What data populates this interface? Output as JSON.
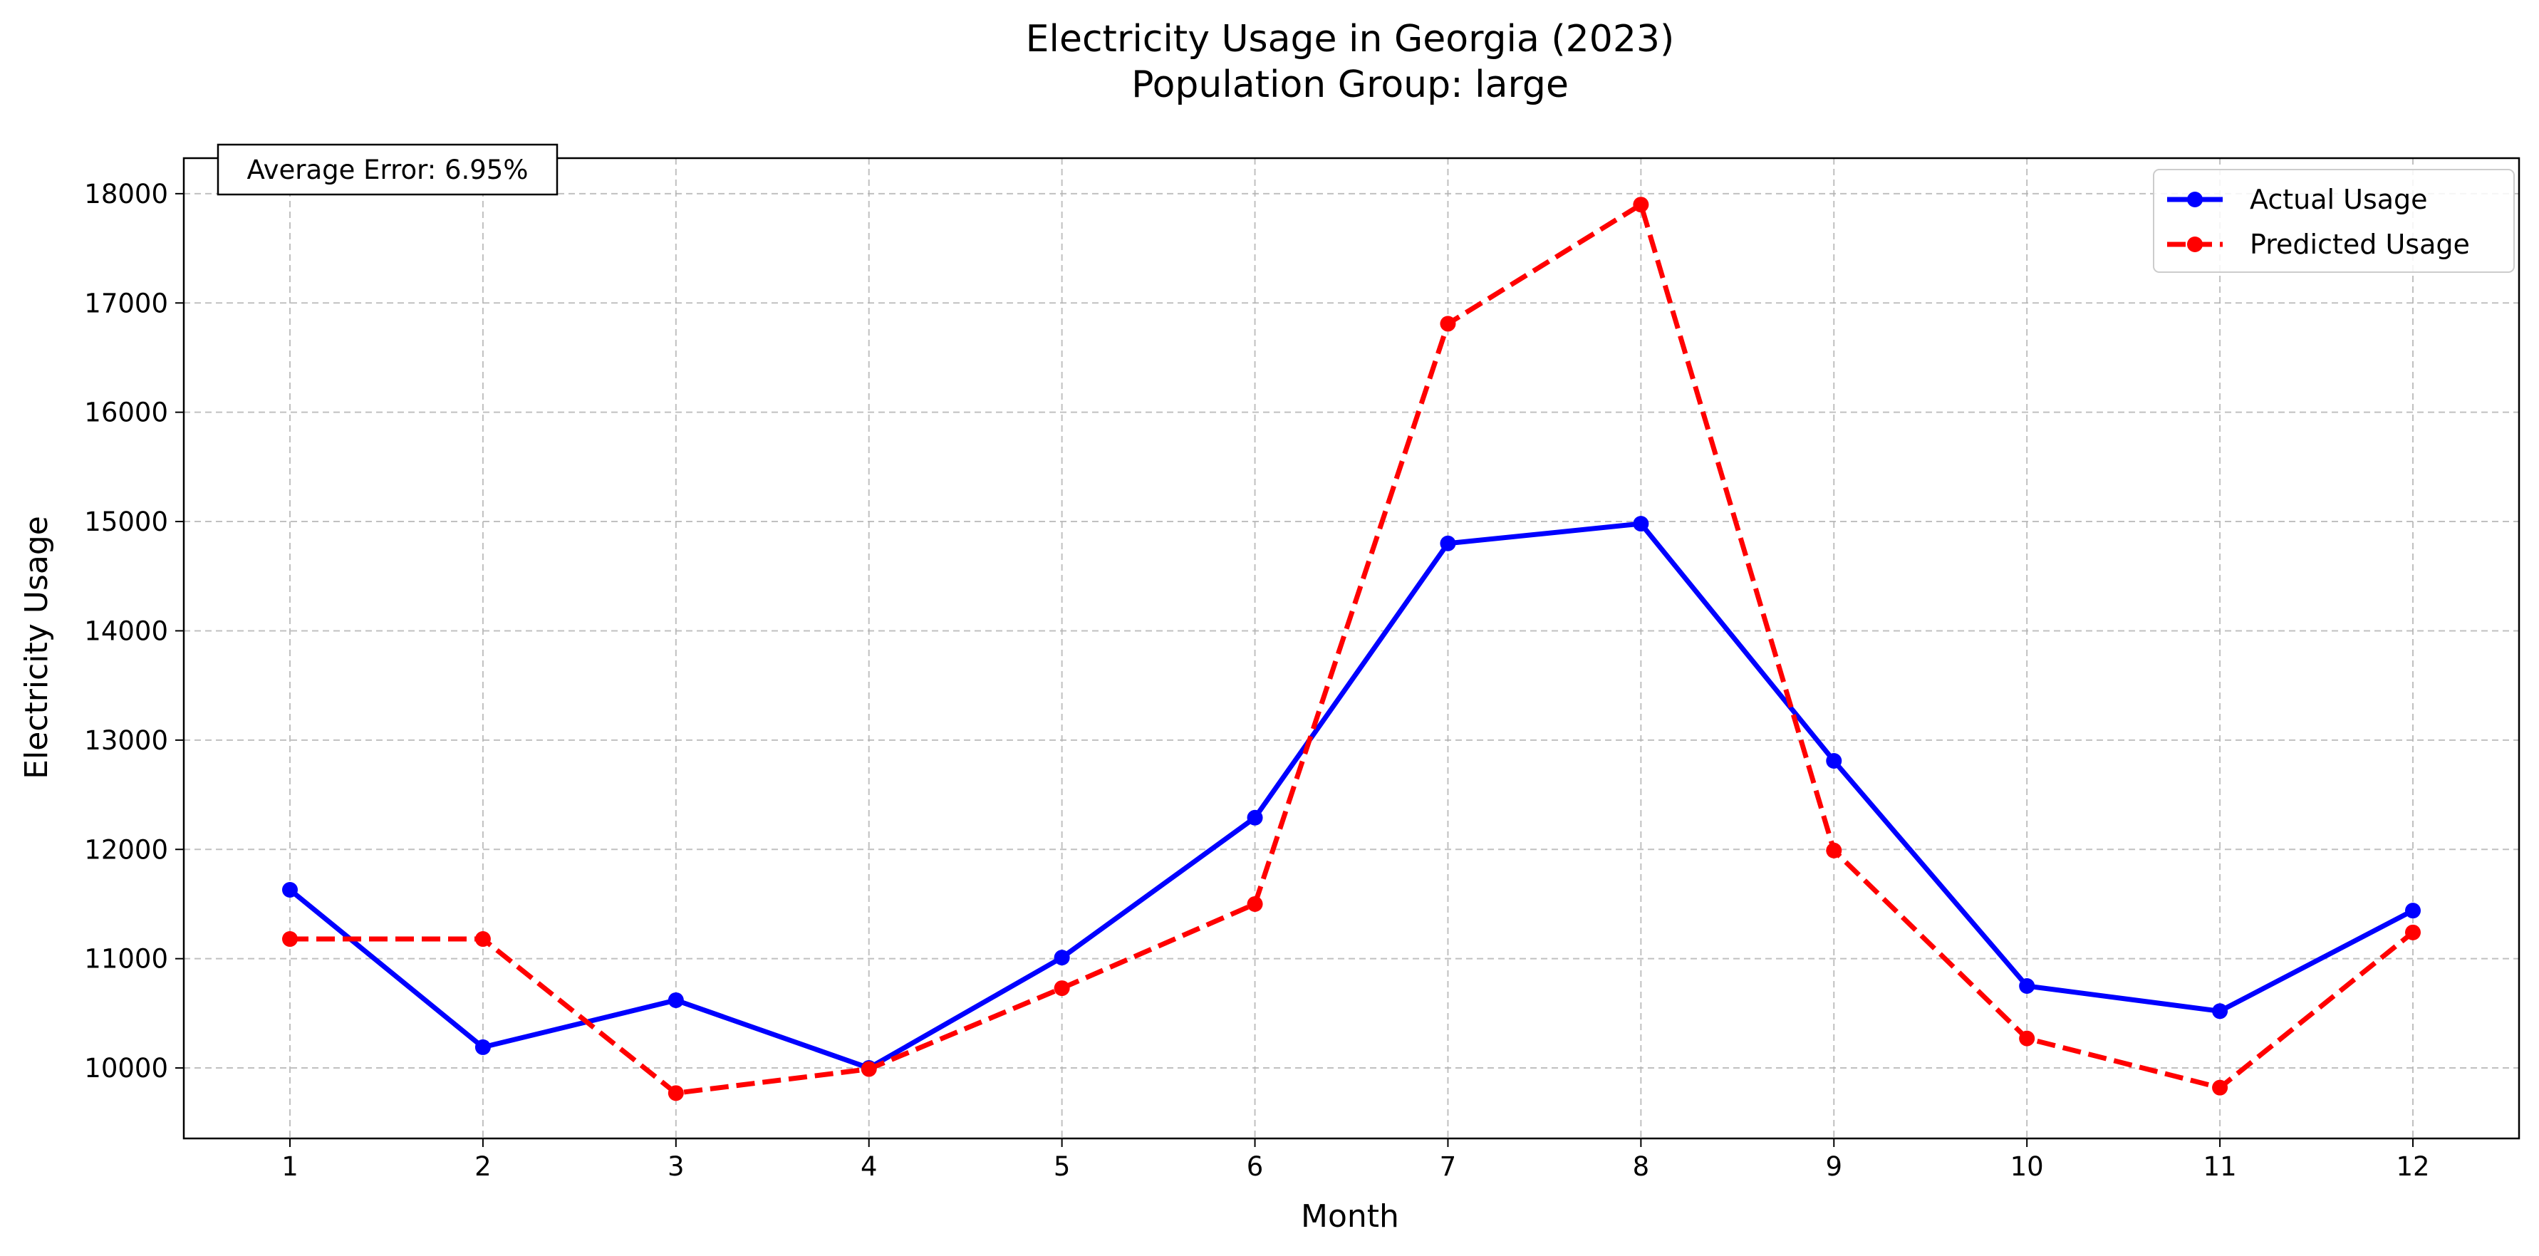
{
  "chart_data": {
    "type": "line",
    "title": "Electricity Usage in Georgia (2023)",
    "subtitle": "Population Group: large",
    "xlabel": "Month",
    "ylabel": "Electricity Usage",
    "x": [
      1,
      2,
      3,
      4,
      5,
      6,
      7,
      8,
      9,
      10,
      11,
      12
    ],
    "x_tick_labels": [
      "1",
      "2",
      "3",
      "4",
      "5",
      "6",
      "7",
      "8",
      "9",
      "10",
      "11",
      "12"
    ],
    "xlim": [
      0.45,
      12.55
    ],
    "ylim": [
      9355,
      18325
    ],
    "y_ticks": [
      10000,
      11000,
      12000,
      13000,
      14000,
      15000,
      16000,
      17000,
      18000
    ],
    "y_tick_labels": [
      "10000",
      "11000",
      "12000",
      "13000",
      "14000",
      "15000",
      "16000",
      "17000",
      "18000"
    ],
    "grid": true,
    "legend_position": "top-right",
    "series": [
      {
        "name": "Actual Usage",
        "color": "#0000ff",
        "line_style": "solid",
        "marker": "circle",
        "values": [
          11630,
          10190,
          10620,
          10000,
          11010,
          12290,
          14800,
          14980,
          12810,
          10750,
          10520,
          11440
        ]
      },
      {
        "name": "Predicted Usage",
        "color": "#ff0000",
        "line_style": "dashed",
        "marker": "circle",
        "values": [
          11180,
          11180,
          9770,
          9990,
          10730,
          11500,
          16810,
          17900,
          11990,
          10270,
          9820,
          11240
        ]
      }
    ],
    "annotations": [
      {
        "text": "Average Error: 6.95%",
        "position": "top-left"
      }
    ]
  }
}
